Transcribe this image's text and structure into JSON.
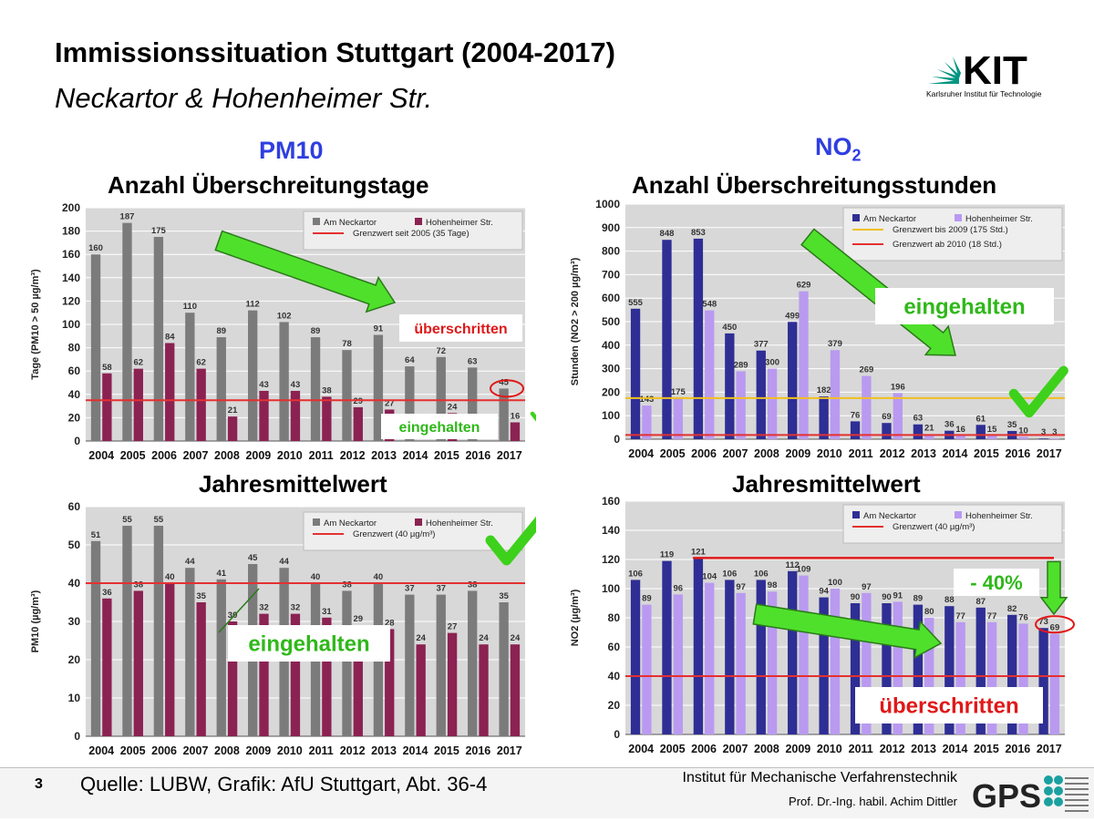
{
  "title": "Immissionssituation Stuttgart (2004-2017)",
  "subtitle": "Neckartor & Hohenheimer Str.",
  "logo": {
    "text": "KIT",
    "caption": "Karlsruher Institut für Technologie"
  },
  "section_left": {
    "title": "PM10",
    "sub1": "Anzahl Überschreitungstage",
    "sub2": "Jahresmittelwert"
  },
  "section_right": {
    "title_main": "NO",
    "title_sub": "2",
    "sub1": "Anzahl Überschreitungsstunden",
    "sub2": "Jahresmittelwert"
  },
  "footer": {
    "page": "3",
    "source": "Quelle: LUBW, Grafik: AfU Stuttgart, Abt. 36-4",
    "institute": "Institut für Mechanische Verfahrenstechnik",
    "professor": "Prof. Dr.-Ing. habil. Achim Dittler",
    "gps_logo": "GPS"
  },
  "colors": {
    "gray": "#7b7b7b",
    "maroon": "#8b2252",
    "navy": "#2e2e95",
    "lilac": "#b99af0",
    "limit_red": "#e53030",
    "limit_yellow": "#f0c020",
    "green": "#4fe02c",
    "title_blue": "#2f3ee0",
    "plot_bg": "#d8d8d8"
  },
  "chart_data": [
    {
      "id": "pm10-days",
      "type": "bar",
      "title": "Anzahl Überschreitungstage",
      "ylabel": "Tage (PM10 > 50 µg/m³)",
      "ylim": [
        0,
        200
      ],
      "ytick_step": 20,
      "categories": [
        "2004",
        "2005",
        "2006",
        "2007",
        "2008",
        "2009",
        "2010",
        "2011",
        "2012",
        "2013",
        "2014",
        "2015",
        "2016",
        "2017"
      ],
      "series": [
        {
          "name": "Am Neckartor",
          "color": "#7b7b7b",
          "values": [
            160,
            187,
            175,
            110,
            89,
            112,
            102,
            89,
            78,
            91,
            64,
            72,
            63,
            45
          ]
        },
        {
          "name": "Hohenheimer Str.",
          "color": "#8b2252",
          "values": [
            58,
            62,
            84,
            62,
            21,
            43,
            43,
            38,
            29,
            27,
            null,
            24,
            null,
            16
          ]
        }
      ],
      "hlines": [
        {
          "label": "Grenzwert seit 2005 (35 Tage)",
          "value": 35,
          "color": "#e53030"
        }
      ],
      "annotations": [
        "überschritten",
        "eingehalten"
      ],
      "highlight_value": "45"
    },
    {
      "id": "no2-hours",
      "type": "bar",
      "title": "Anzahl Überschreitungsstunden",
      "ylabel": "Stunden (NO2 > 200 µg/m³)",
      "ylim": [
        0,
        1000
      ],
      "ytick_step": 100,
      "categories": [
        "2004",
        "2005",
        "2006",
        "2007",
        "2008",
        "2009",
        "2010",
        "2011",
        "2012",
        "2013",
        "2014",
        "2015",
        "2016",
        "2017"
      ],
      "series": [
        {
          "name": "Am Neckartor",
          "color": "#2e2e95",
          "values": [
            555,
            848,
            853,
            450,
            377,
            499,
            182,
            76,
            69,
            63,
            36,
            61,
            35,
            3
          ]
        },
        {
          "name": "Hohenheimer Str.",
          "color": "#b99af0",
          "values": [
            143,
            175,
            548,
            289,
            300,
            629,
            379,
            269,
            196,
            21,
            16,
            15,
            10,
            3
          ]
        }
      ],
      "hlines": [
        {
          "label": "Grenzwert bis 2009 (175 Std.)",
          "value": 175,
          "color": "#f0c020"
        },
        {
          "label": "Grenzwert ab 2010 (18 Std.)",
          "value": 18,
          "color": "#e53030"
        }
      ],
      "annotations": [
        "eingehalten"
      ]
    },
    {
      "id": "pm10-annual",
      "type": "bar",
      "title": "Jahresmittelwert",
      "ylabel": "PM10 (µg/m³)",
      "ylim": [
        0,
        60
      ],
      "ytick_step": 10,
      "categories": [
        "2004",
        "2005",
        "2006",
        "2007",
        "2008",
        "2009",
        "2010",
        "2011",
        "2012",
        "2013",
        "2014",
        "2015",
        "2016",
        "2017"
      ],
      "series": [
        {
          "name": "Am Neckartor",
          "color": "#7b7b7b",
          "values": [
            51,
            55,
            55,
            44,
            41,
            45,
            44,
            40,
            38,
            40,
            37,
            37,
            38,
            35
          ]
        },
        {
          "name": "Hohenheimer Str.",
          "color": "#8b2252",
          "values": [
            36,
            38,
            40,
            35,
            30,
            32,
            32,
            31,
            29,
            28,
            24,
            27,
            24,
            24
          ]
        }
      ],
      "hlines": [
        {
          "label": "Grenzwert (40 µg/m³)",
          "value": 40,
          "color": "#e53030"
        }
      ],
      "annotations": [
        "eingehalten"
      ]
    },
    {
      "id": "no2-annual",
      "type": "bar",
      "title": "Jahresmittelwert",
      "ylabel": "NO2 (µg/m³)",
      "ylim": [
        0,
        160
      ],
      "ytick_step": 20,
      "categories": [
        "2004",
        "2005",
        "2006",
        "2007",
        "2008",
        "2009",
        "2010",
        "2011",
        "2012",
        "2013",
        "2014",
        "2015",
        "2016",
        "2017"
      ],
      "series": [
        {
          "name": "Am Neckartor",
          "color": "#2e2e95",
          "values": [
            106,
            119,
            121,
            106,
            106,
            112,
            94,
            90,
            90,
            89,
            88,
            87,
            82,
            73
          ]
        },
        {
          "name": "Hohenheimer Str.",
          "color": "#b99af0",
          "values": [
            89,
            96,
            104,
            97,
            98,
            109,
            100,
            97,
            91,
            80,
            77,
            77,
            76,
            69
          ]
        }
      ],
      "hlines": [
        {
          "label": "Grenzwert (40 µg/m³)",
          "value": 40,
          "color": "#e53030"
        }
      ],
      "annotations": [
        "- 40%",
        "überschritten"
      ],
      "highlight_value": "73 69"
    }
  ]
}
